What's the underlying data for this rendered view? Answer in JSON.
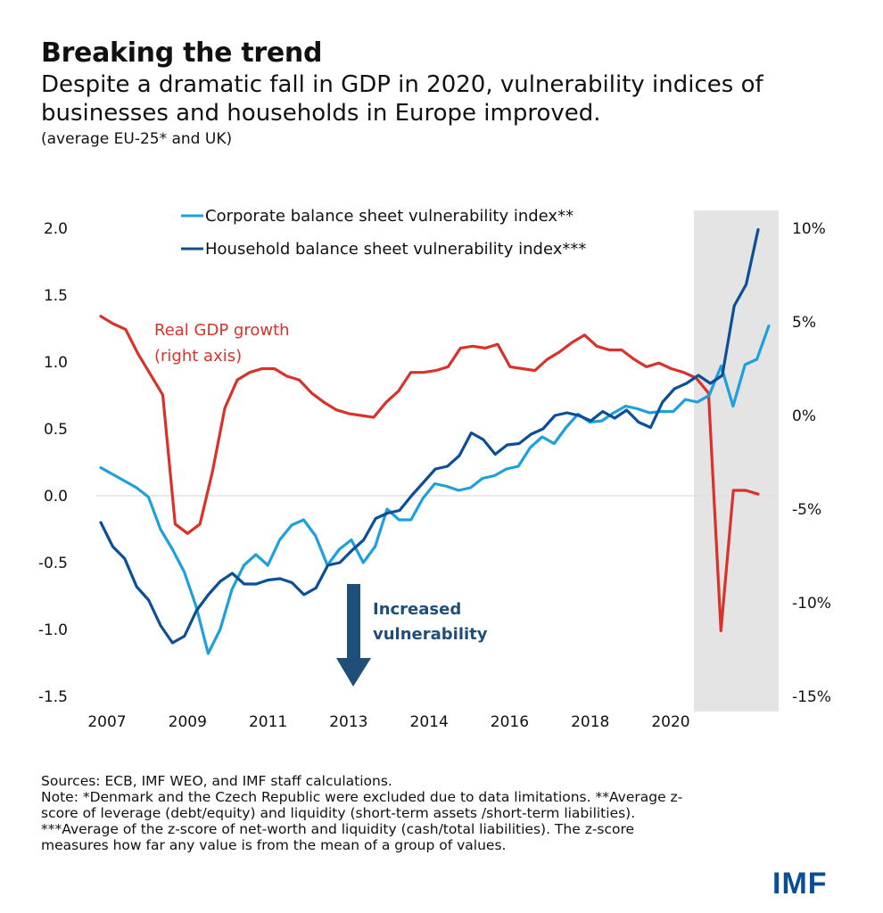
{
  "header": {
    "title": "Breaking the trend",
    "subtitle": "Despite a dramatic fall in GDP in 2020, vulnerability indices of businesses and households in Europe improved.",
    "subnote": "(average EU-25* and UK)"
  },
  "chart_data": {
    "type": "line",
    "title": "Breaking the trend",
    "x_tick_labels": [
      "2007",
      "2009",
      "2011",
      "2013",
      "2014",
      "2016",
      "2018",
      "2020"
    ],
    "left_axis": {
      "ticks": [
        "2.0",
        "1.5",
        "1.0",
        "0.5",
        "0.0",
        "-0.5",
        "-1.0",
        "-1.5"
      ],
      "range": [
        -1.5,
        2.0
      ]
    },
    "right_axis": {
      "ticks": [
        "10%",
        "5%",
        "0%",
        "-5%",
        "-10%",
        "-15%"
      ],
      "range": [
        -15,
        10
      ]
    },
    "shaded_period": "2020 onwards",
    "legend": [
      {
        "name": "Corporate balance sheet vulnerability index**",
        "color": "#1ea0dc"
      },
      {
        "name": "Household balance sheet vulnerability index***",
        "color": "#0d4f96"
      }
    ],
    "annotations": {
      "gdp_label": [
        "Real GDP growth",
        "(right axis)"
      ],
      "arrow_label": [
        "Increased",
        "vulnerability"
      ]
    },
    "series": [
      {
        "name": "Corporate balance sheet vulnerability index**",
        "axis": "left",
        "color": "#1ea0dc",
        "values": [
          0.21,
          0.16,
          0.11,
          0.06,
          -0.01,
          -0.25,
          -0.4,
          -0.57,
          -0.83,
          -1.18,
          -1.0,
          -0.7,
          -0.52,
          -0.44,
          -0.52,
          -0.33,
          -0.22,
          -0.18,
          -0.3,
          -0.52,
          -0.4,
          -0.33,
          -0.5,
          -0.38,
          -0.1,
          -0.18,
          -0.18,
          -0.02,
          0.09,
          0.07,
          0.04,
          0.06,
          0.13,
          0.15,
          0.2,
          0.22,
          0.36,
          0.44,
          0.39,
          0.51,
          0.61,
          0.55,
          0.56,
          0.62,
          0.67,
          0.65,
          0.62,
          0.63,
          0.63,
          0.72,
          0.7,
          0.75,
          0.97,
          0.67,
          0.98,
          1.02,
          1.27
        ]
      },
      {
        "name": "Household balance sheet vulnerability index***",
        "axis": "left",
        "color": "#0d4f96",
        "values": [
          -0.2,
          -0.38,
          -0.47,
          -0.68,
          -0.78,
          -0.97,
          -1.1,
          -1.05,
          -0.86,
          -0.74,
          -0.64,
          -0.58,
          -0.66,
          -0.66,
          -0.63,
          -0.62,
          -0.65,
          -0.74,
          -0.69,
          -0.52,
          -0.5,
          -0.41,
          -0.33,
          -0.17,
          -0.13,
          -0.11,
          0.0,
          0.1,
          0.2,
          0.22,
          0.3,
          0.47,
          0.42,
          0.31,
          0.38,
          0.39,
          0.46,
          0.5,
          0.6,
          0.62,
          0.6,
          0.56,
          0.63,
          0.58,
          0.64,
          0.55,
          0.51,
          0.7,
          0.8,
          0.84,
          0.9,
          0.84,
          0.9,
          1.42,
          1.58,
          1.99
        ]
      },
      {
        "name": "Real GDP growth (right axis)",
        "axis": "right",
        "color": "#d8322a",
        "values": [
          5.3,
          4.9,
          4.6,
          3.3,
          2.2,
          1.1,
          -5.8,
          -6.3,
          -5.8,
          -3.0,
          0.4,
          1.9,
          2.3,
          2.5,
          2.5,
          2.1,
          1.9,
          1.2,
          0.7,
          0.3,
          0.1,
          0.0,
          -0.1,
          0.7,
          1.3,
          2.3,
          2.3,
          2.4,
          2.6,
          3.6,
          3.7,
          3.6,
          3.8,
          2.6,
          2.5,
          2.4,
          3.0,
          3.4,
          3.9,
          4.3,
          3.7,
          3.5,
          3.5,
          3.0,
          2.6,
          2.8,
          2.5,
          2.3,
          2.0,
          1.2,
          -11.5,
          -4.0,
          -4.0,
          -4.2
        ]
      }
    ]
  },
  "footer": {
    "lines": [
      "Sources: ECB, IMF WEO, and IMF staff calculations.",
      "Note: *Denmark and the Czech Republic were excluded due to data limitations. **Average z-",
      "score of leverage (debt/equity) and liquidity (short-term assets /short-term liabilities).",
      "***Average of the z-score of net-worth and liquidity (cash/total liabilities). The z-score",
      "measures how far any value is from the mean of a group of values."
    ],
    "logo": "IMF"
  }
}
